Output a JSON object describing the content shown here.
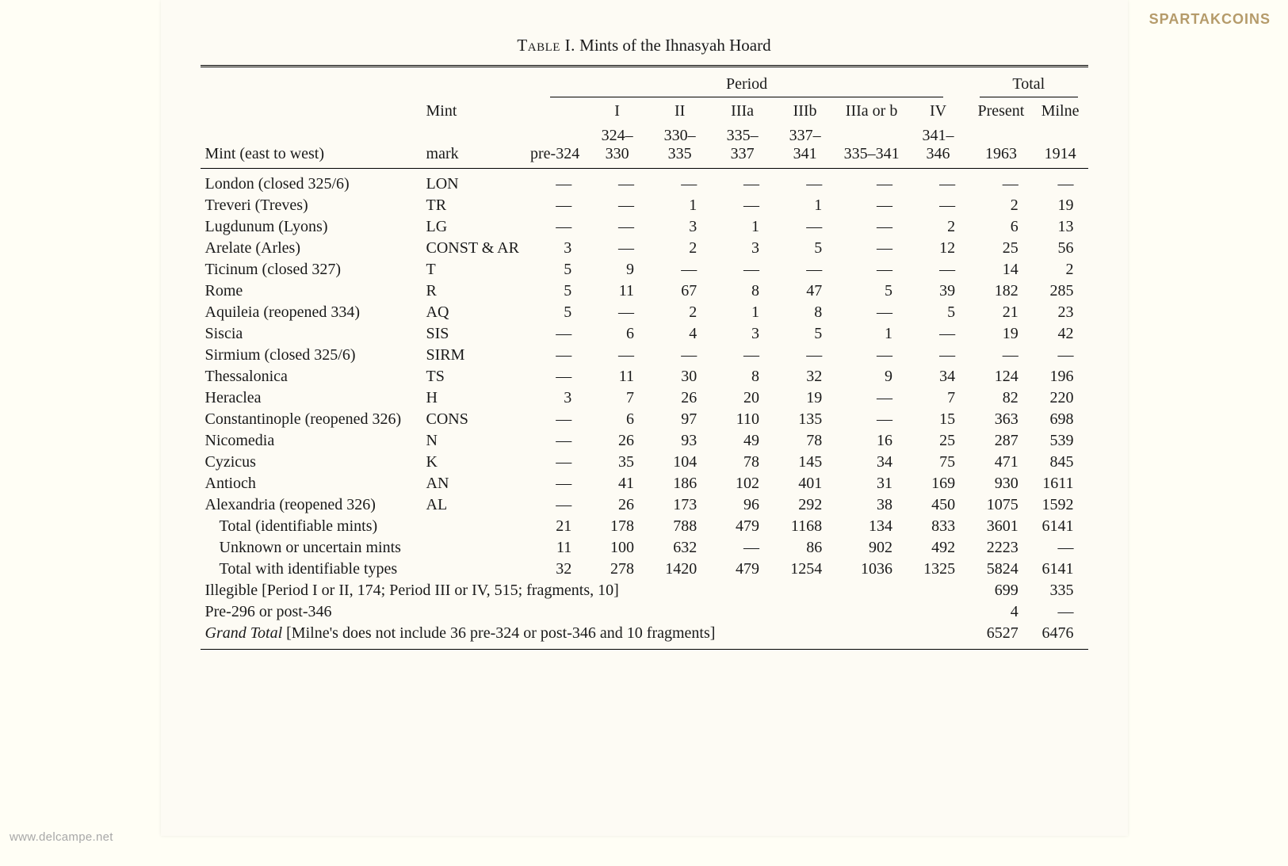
{
  "watermark_bl": "www.delcampe.net",
  "watermark_tr": "SPARTAKCOINS",
  "table": {
    "title_prefix": "Table I.",
    "title": "Mints of the Ihnasyah Hoard",
    "columns": {
      "mint": "Mint (east to west)",
      "mark": "Mint mark",
      "period_span": "Period",
      "total_span": "Total",
      "headers": [
        "",
        "I",
        "II",
        "IIIa",
        "IIIb",
        "IIIa or b",
        "IV"
      ],
      "subheaders": [
        "pre-324",
        "324–330",
        "330–335",
        "335–337",
        "337–341",
        "335–341",
        "341–346"
      ],
      "present": "Present 1963",
      "milne": "Milne 1914"
    },
    "dash": "—",
    "rows": [
      {
        "name": "London (closed 325/6)",
        "mark": "LON",
        "v": [
          "—",
          "—",
          "—",
          "—",
          "—",
          "—",
          "—",
          "—",
          "—"
        ]
      },
      {
        "name": "Treveri (Treves)",
        "mark": "TR",
        "v": [
          "—",
          "—",
          "1",
          "—",
          "1",
          "—",
          "—",
          "2",
          "19"
        ]
      },
      {
        "name": "Lugdunum (Lyons)",
        "mark": "LG",
        "v": [
          "—",
          "—",
          "3",
          "1",
          "—",
          "—",
          "2",
          "6",
          "13"
        ]
      },
      {
        "name": "Arelate (Arles)",
        "mark": "CONST & AR",
        "v": [
          "3",
          "—",
          "2",
          "3",
          "5",
          "—",
          "12",
          "25",
          "56"
        ]
      },
      {
        "name": "Ticinum (closed 327)",
        "mark": "T",
        "v": [
          "5",
          "9",
          "—",
          "—",
          "—",
          "—",
          "—",
          "14",
          "2"
        ]
      },
      {
        "name": "Rome",
        "mark": "R",
        "v": [
          "5",
          "11",
          "67",
          "8",
          "47",
          "5",
          "39",
          "182",
          "285"
        ]
      },
      {
        "name": "Aquileia (reopened 334)",
        "mark": "AQ",
        "v": [
          "5",
          "—",
          "2",
          "1",
          "8",
          "—",
          "5",
          "21",
          "23"
        ]
      },
      {
        "name": "Siscia",
        "mark": "SIS",
        "v": [
          "—",
          "6",
          "4",
          "3",
          "5",
          "1",
          "—",
          "19",
          "42"
        ]
      },
      {
        "name": "Sirmium (closed 325/6)",
        "mark": "SIRM",
        "v": [
          "—",
          "—",
          "—",
          "—",
          "—",
          "—",
          "—",
          "—",
          "—"
        ]
      },
      {
        "name": "Thessalonica",
        "mark": "TS",
        "v": [
          "—",
          "11",
          "30",
          "8",
          "32",
          "9",
          "34",
          "124",
          "196"
        ]
      },
      {
        "name": "Heraclea",
        "mark": "H",
        "v": [
          "3",
          "7",
          "26",
          "20",
          "19",
          "—",
          "7",
          "82",
          "220"
        ]
      },
      {
        "name": "Constantinople (reopened 326)",
        "mark": "CONS",
        "v": [
          "—",
          "6",
          "97",
          "110",
          "135",
          "—",
          "15",
          "363",
          "698"
        ]
      },
      {
        "name": "Nicomedia",
        "mark": "N",
        "v": [
          "—",
          "26",
          "93",
          "49",
          "78",
          "16",
          "25",
          "287",
          "539"
        ]
      },
      {
        "name": "Cyzicus",
        "mark": "K",
        "v": [
          "—",
          "35",
          "104",
          "78",
          "145",
          "34",
          "75",
          "471",
          "845"
        ]
      },
      {
        "name": "Antioch",
        "mark": "AN",
        "v": [
          "—",
          "41",
          "186",
          "102",
          "401",
          "31",
          "169",
          "930",
          "1611"
        ]
      },
      {
        "name": "Alexandria (reopened 326)",
        "mark": "AL",
        "v": [
          "—",
          "26",
          "173",
          "96",
          "292",
          "38",
          "450",
          "1075",
          "1592"
        ]
      }
    ],
    "summary_rows": [
      {
        "name": "Total (identifiable mints)",
        "indent": true,
        "v": [
          "21",
          "178",
          "788",
          "479",
          "1168",
          "134",
          "833",
          "3601",
          "6141"
        ]
      },
      {
        "name": "Unknown or uncertain mints",
        "indent": true,
        "v": [
          "11",
          "100",
          "632",
          "—",
          "86",
          "902",
          "492",
          "2223",
          "—"
        ]
      },
      {
        "name": "Total with identifiable types",
        "indent": true,
        "v": [
          "32",
          "278",
          "1420",
          "479",
          "1254",
          "1036",
          "1325",
          "5824",
          "6141"
        ]
      }
    ],
    "footer_rows": [
      {
        "text": "Illegible [Period I or II, 174; Period III or IV, 515; fragments, 10]",
        "present": "699",
        "milne": "335"
      },
      {
        "text": "Pre-296 or post-346",
        "present": "4",
        "milne": "—"
      }
    ],
    "grand_total": {
      "label": "Grand Total",
      "text": " [Milne's does not include 36 pre-324 or post-346 and 10 fragments]",
      "present": "6527",
      "milne": "6476"
    }
  }
}
